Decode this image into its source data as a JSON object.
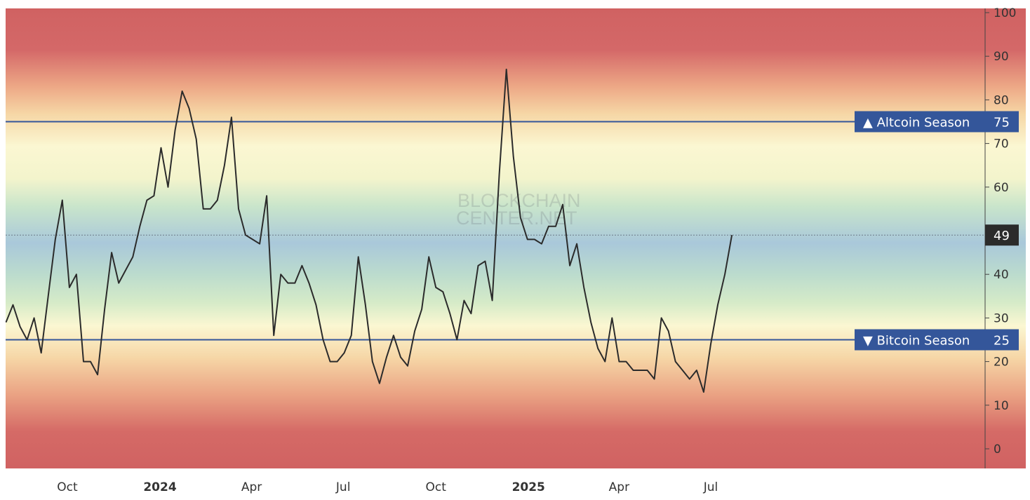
{
  "chart_data": {
    "type": "line",
    "title": "",
    "xlabel": "",
    "ylabel": "",
    "ylim": [
      -4,
      101
    ],
    "y_ticks": [
      0,
      10,
      20,
      30,
      40,
      50,
      60,
      70,
      80,
      90,
      100
    ],
    "y_tick_labels": [
      "0",
      "10",
      "20",
      "30",
      "40",
      "",
      "60",
      "70",
      "80",
      "90",
      "100"
    ],
    "y_axis_position": "right",
    "x_tick_labels": [
      {
        "date": "2023-10-01",
        "label": "Oct",
        "bold": false
      },
      {
        "date": "2024-01-01",
        "label": "2024",
        "bold": true
      },
      {
        "date": "2024-04-01",
        "label": "Apr",
        "bold": false
      },
      {
        "date": "2024-07-01",
        "label": "Jul",
        "bold": false
      },
      {
        "date": "2024-10-01",
        "label": "Oct",
        "bold": false
      },
      {
        "date": "2025-01-01",
        "label": "2025",
        "bold": true
      },
      {
        "date": "2025-04-01",
        "label": "Apr",
        "bold": false
      },
      {
        "date": "2025-07-01",
        "label": "Jul",
        "bold": false
      }
    ],
    "grid": false,
    "background": "vertical heat gradient: red at 0 and 100, peach/yellow near 25 and 75, green/blue around 50",
    "line_color": "#2b2b2b",
    "reference_lines": [
      {
        "value": 75,
        "label": "▲ Altcoin Season",
        "value_label": "75",
        "color": "#34569a"
      },
      {
        "value": 25,
        "label": "▼ Bitcoin Season",
        "value_label": "25",
        "color": "#34569a"
      }
    ],
    "current_value": {
      "value": 49,
      "label": "49",
      "color": "#2b2b2b"
    },
    "watermark": "BLOCKCHAIN CENTER.NET",
    "x": [
      "2023-08-01",
      "2023-08-08",
      "2023-08-15",
      "2023-08-22",
      "2023-08-29",
      "2023-09-05",
      "2023-09-12",
      "2023-09-19",
      "2023-09-26",
      "2023-10-03",
      "2023-10-10",
      "2023-10-17",
      "2023-10-24",
      "2023-10-31",
      "2023-11-07",
      "2023-11-14",
      "2023-11-21",
      "2023-11-28",
      "2023-12-05",
      "2023-12-12",
      "2023-12-19",
      "2023-12-26",
      "2024-01-02",
      "2024-01-09",
      "2024-01-16",
      "2024-01-23",
      "2024-01-30",
      "2024-02-06",
      "2024-02-13",
      "2024-02-20",
      "2024-02-27",
      "2024-03-05",
      "2024-03-12",
      "2024-03-19",
      "2024-03-26",
      "2024-04-02",
      "2024-04-09",
      "2024-04-16",
      "2024-04-23",
      "2024-04-30",
      "2024-05-07",
      "2024-05-14",
      "2024-05-21",
      "2024-05-28",
      "2024-06-04",
      "2024-06-11",
      "2024-06-18",
      "2024-06-25",
      "2024-07-02",
      "2024-07-09",
      "2024-07-16",
      "2024-07-23",
      "2024-07-30",
      "2024-08-06",
      "2024-08-13",
      "2024-08-20",
      "2024-08-27",
      "2024-09-03",
      "2024-09-10",
      "2024-09-17",
      "2024-09-24",
      "2024-10-01",
      "2024-10-08",
      "2024-10-15",
      "2024-10-22",
      "2024-10-29",
      "2024-11-05",
      "2024-11-12",
      "2024-11-19",
      "2024-11-26",
      "2024-12-03",
      "2024-12-10",
      "2024-12-17",
      "2024-12-24",
      "2024-12-31",
      "2025-01-07",
      "2025-01-14",
      "2025-01-21",
      "2025-01-28",
      "2025-02-04",
      "2025-02-11",
      "2025-02-18",
      "2025-02-25",
      "2025-03-04",
      "2025-03-11",
      "2025-03-18",
      "2025-03-25",
      "2025-04-01",
      "2025-04-08",
      "2025-04-15",
      "2025-04-22",
      "2025-04-29",
      "2025-05-06",
      "2025-05-13",
      "2025-05-20",
      "2025-05-27",
      "2025-06-03",
      "2025-06-10",
      "2025-06-17",
      "2025-06-24",
      "2025-07-01",
      "2025-07-08",
      "2025-07-15",
      "2025-07-22"
    ],
    "values": [
      29,
      33,
      28,
      25,
      30,
      22,
      35,
      48,
      57,
      37,
      40,
      20,
      20,
      17,
      32,
      45,
      38,
      41,
      44,
      51,
      57,
      58,
      69,
      60,
      73,
      82,
      78,
      71,
      55,
      55,
      57,
      65,
      76,
      55,
      49,
      48,
      47,
      58,
      26,
      40,
      38,
      38,
      42,
      38,
      33,
      25,
      20,
      20,
      22,
      26,
      44,
      33,
      20,
      15,
      21,
      26,
      21,
      19,
      27,
      32,
      44,
      37,
      36,
      31,
      25,
      34,
      31,
      42,
      43,
      34,
      63,
      87,
      67,
      53,
      48,
      48,
      47,
      51,
      51,
      56,
      42,
      47,
      37,
      29,
      23,
      20,
      30,
      20,
      20,
      18,
      18,
      18,
      16,
      30,
      27,
      20,
      18,
      16,
      18,
      13,
      24,
      33,
      40,
      49
    ]
  }
}
